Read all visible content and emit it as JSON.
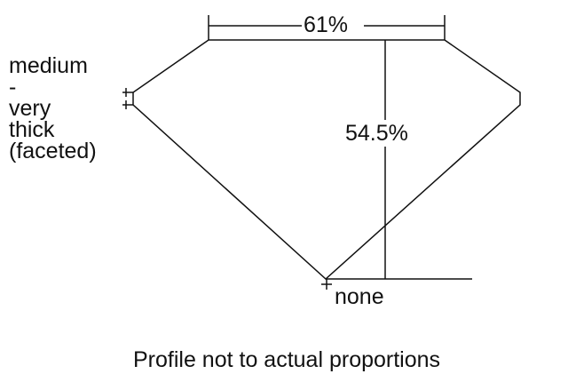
{
  "diagram": {
    "table_percent": "61%",
    "depth_percent": "54.5%",
    "girdle_label": [
      "medium",
      "-",
      "very",
      "thick",
      "(faceted)"
    ],
    "culet_label": "none",
    "footer": "Profile not to actual proportions",
    "line_color": "#111111"
  }
}
